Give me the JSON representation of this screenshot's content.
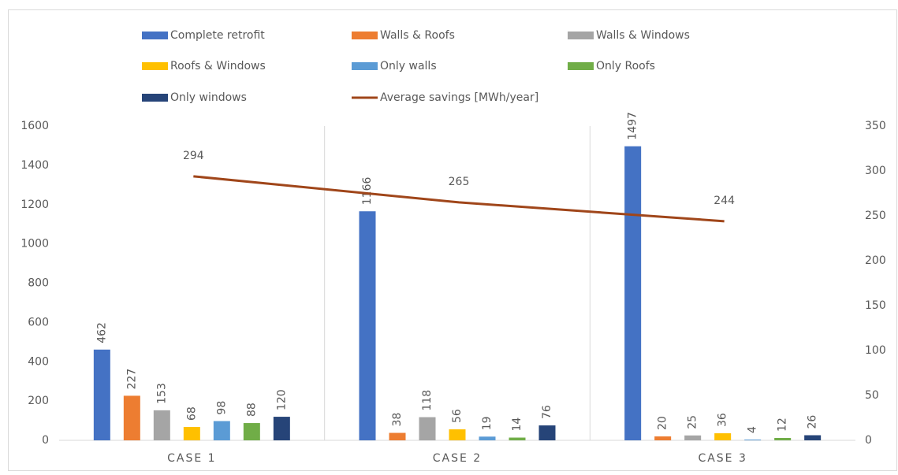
{
  "chart_data": {
    "type": "bar",
    "categories": [
      "CASE 1",
      "CASE 2",
      "CASE 3"
    ],
    "series": [
      {
        "name": "Complete retrofit",
        "color": "#4472c4",
        "values": [
          462,
          1166,
          1497
        ]
      },
      {
        "name": "Walls & Roofs",
        "color": "#ed7d31",
        "values": [
          227,
          38,
          20
        ]
      },
      {
        "name": "Walls & Windows",
        "color": "#a5a5a5",
        "values": [
          153,
          118,
          25
        ]
      },
      {
        "name": "Roofs & Windows",
        "color": "#ffc000",
        "values": [
          68,
          56,
          36
        ]
      },
      {
        "name": "Only walls",
        "color": "#5b9bd5",
        "values": [
          98,
          19,
          4
        ]
      },
      {
        "name": "Only Roofs",
        "color": "#70ad47",
        "values": [
          88,
          14,
          12
        ]
      },
      {
        "name": "Only windows",
        "color": "#264478",
        "values": [
          120,
          76,
          26
        ]
      },
      {
        "name": "Average savings [MWh/year]",
        "color": "#a0461a",
        "type": "line",
        "axis": "y2",
        "values": [
          294,
          265,
          244
        ]
      }
    ],
    "ylim": [
      0,
      1600
    ],
    "yticks": [
      0,
      200,
      400,
      600,
      800,
      1000,
      1200,
      1400,
      1600
    ],
    "y2lim": [
      0,
      350
    ],
    "y2ticks": [
      0,
      50,
      100,
      150,
      200,
      250,
      300,
      350
    ],
    "grid": "categories",
    "legend": "top"
  }
}
